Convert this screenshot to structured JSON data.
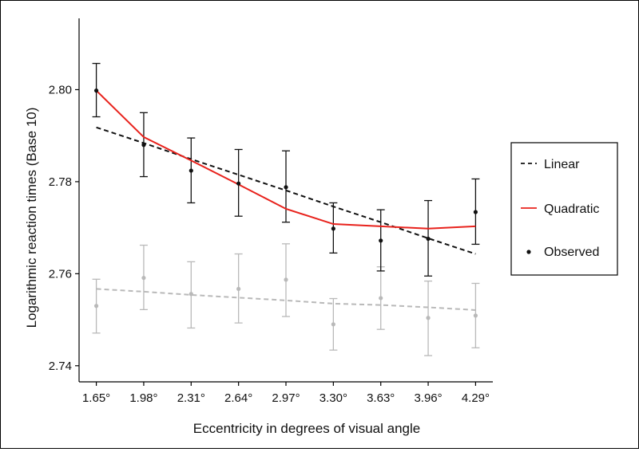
{
  "chart_data": {
    "type": "line",
    "title": "",
    "xlabel": "Eccentricity in degrees of visual angle",
    "ylabel": "Logarithmic reaction times (Base 10)",
    "x": [
      1.65,
      1.98,
      2.31,
      2.64,
      2.97,
      3.3,
      3.63,
      3.96,
      4.29
    ],
    "x_tick_labels": [
      "1.65°",
      "1.98°",
      "2.31°",
      "2.64°",
      "2.97°",
      "3.30°",
      "3.63°",
      "3.96°",
      "4.29°"
    ],
    "y_ticks": [
      2.74,
      2.76,
      2.78,
      2.8
    ],
    "y_tick_labels": [
      "2.74",
      "2.76",
      "2.78",
      "2.80"
    ],
    "ylim": [
      2.7365,
      2.8155
    ],
    "xlim": [
      1.53,
      4.41
    ],
    "grid": false,
    "legend_position": "right",
    "legend": [
      "Linear",
      "Quadratic",
      "Observed"
    ],
    "colors": {
      "primary": "#111111",
      "quadratic": "#e8221c",
      "secondary": "#b9b9b9",
      "axis": "#000000"
    },
    "series": [
      {
        "role": "observed_primary",
        "values": [
          2.7998,
          2.788,
          2.7824,
          2.7796,
          2.7788,
          2.7698,
          2.7672,
          2.7676,
          2.7734
        ],
        "error_low": [
          2.7941,
          2.7811,
          2.7754,
          2.7725,
          2.7712,
          2.7645,
          2.7606,
          2.7595,
          2.7664
        ],
        "error_high": [
          2.8057,
          2.795,
          2.7895,
          2.787,
          2.7867,
          2.7754,
          2.7739,
          2.7759,
          2.7806
        ]
      },
      {
        "role": "linear_primary",
        "values": [
          2.7918,
          2.7884,
          2.7849,
          2.7815,
          2.7781,
          2.7746,
          2.7712,
          2.7677,
          2.7643
        ]
      },
      {
        "role": "quadratic_primary",
        "values": [
          2.7998,
          2.7897,
          2.7846,
          2.7794,
          2.7741,
          2.7708,
          2.7703,
          2.7698,
          2.7703
        ]
      },
      {
        "role": "observed_secondary",
        "values": [
          2.753,
          2.7591,
          2.7556,
          2.7567,
          2.7587,
          2.749,
          2.7547,
          2.7504,
          2.7509
        ],
        "error_low": [
          2.7471,
          2.7522,
          2.7482,
          2.7493,
          2.7507,
          2.7434,
          2.7479,
          2.7422,
          2.7439
        ],
        "error_high": [
          2.7588,
          2.7662,
          2.7626,
          2.7643,
          2.7665,
          2.7546,
          2.7615,
          2.7584,
          2.7579
        ]
      },
      {
        "role": "linear_secondary",
        "values": [
          2.7567,
          2.7561,
          2.7554,
          2.7548,
          2.7542,
          2.7535,
          2.7532,
          2.7527,
          2.7521
        ]
      }
    ]
  }
}
